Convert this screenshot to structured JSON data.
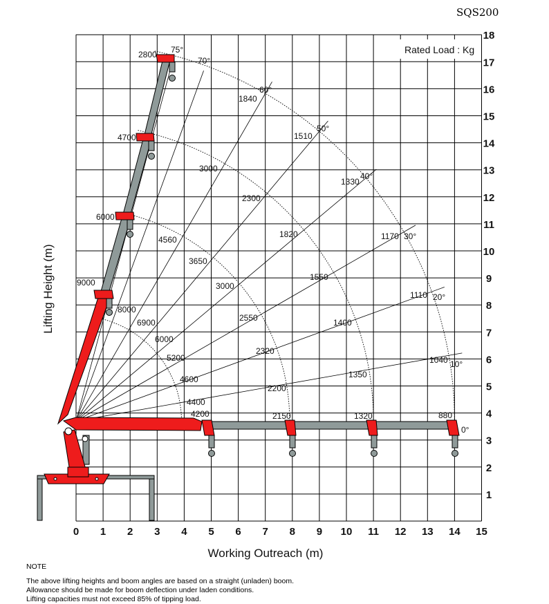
{
  "model": "SQS200",
  "rated_label": "Rated Load : Kg",
  "x_axis": {
    "label": "Working Outreach (m)",
    "ticks": [
      "0",
      "1",
      "2",
      "3",
      "4",
      "5",
      "6",
      "7",
      "8",
      "9",
      "10",
      "11",
      "12",
      "13",
      "14",
      "15"
    ]
  },
  "y_axis": {
    "label": "Lifting Height (m)",
    "ticks": [
      "1",
      "2",
      "3",
      "4",
      "5",
      "6",
      "7",
      "8",
      "9",
      "10",
      "11",
      "12",
      "13",
      "14",
      "15",
      "16",
      "17",
      "18"
    ]
  },
  "angles": [
    "0°",
    "10°",
    "20°",
    "30°",
    "40°",
    "50°",
    "60°",
    "70°",
    "75°"
  ],
  "capacities": {
    "tip_4": "2800",
    "tip_3": "4700",
    "tip_2": "6000",
    "tip_1": "9000",
    "r4_60": "1840",
    "r4_50": "1510",
    "r4_40": "1330",
    "r4_30": "1170",
    "r4_20": "1110",
    "r4_10": "1040",
    "r4_0": "880",
    "r3_70": "3000",
    "r3_60": "2300",
    "r3_50": "1820",
    "r3_40": "1550",
    "r3_30": "1400",
    "r3_20": "1350",
    "r3_0": "1320",
    "r2_70": "4560",
    "r2_60": "3650",
    "r2_50": "3000",
    "r2_40": "2550",
    "r2_30": "2320",
    "r2_20": "2200",
    "r2_0": "2150",
    "r1_75": "8000",
    "r1_70": "6900",
    "r1_60": "6000",
    "r1_50": "5200",
    "r1_40": "4600",
    "r1_30": "4400",
    "r1_20": "4200"
  },
  "note": {
    "heading": "NOTE",
    "lines": [
      "The above lifting heights and boom angles are based on a straight (unladen) boom.",
      "Allowance should be made for boom deflection under laden conditions.",
      "Lifting capacities must not exceed 85% of tipping load."
    ]
  },
  "colors": {
    "boom_red": "#ee1c1c",
    "boom_grey": "#8f9a99",
    "grid": "#000000"
  }
}
